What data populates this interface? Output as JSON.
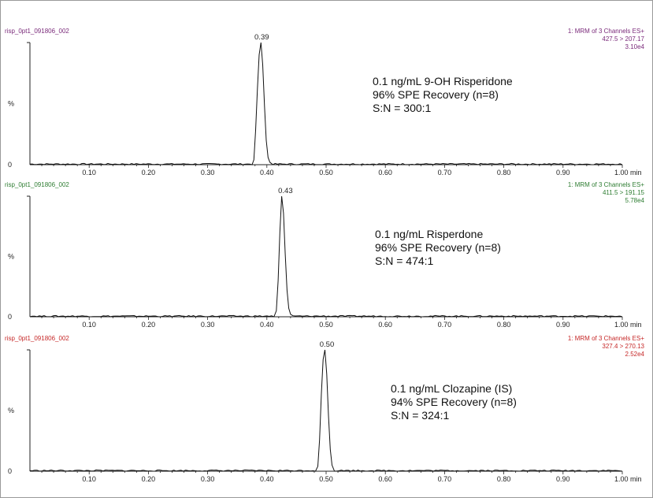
{
  "chart_data": [
    {
      "type": "line",
      "file_label": "risp_0pt1_091806_002",
      "channel_lines": [
        "1: MRM of 3 Channels ES+",
        "427.5 > 207.17",
        "3.10e4"
      ],
      "header_color": "#7a2a7a",
      "ylabel": "%",
      "y_tick_labels": [
        "0"
      ],
      "x_tick_labels": [
        "0.10",
        "0.20",
        "0.30",
        "0.40",
        "0.50",
        "0.60",
        "0.70",
        "0.80",
        "0.90",
        "1.00 min"
      ],
      "xlim": [
        0.0,
        1.0
      ],
      "ylim": [
        0,
        100
      ],
      "peak": {
        "rt": 0.39,
        "label": "0.39",
        "height": 100
      },
      "annotation": [
        "0.1  ng/mL  9-OH  Risperidone",
        "96% SPE Recovery (n=8)",
        "S:N = 300:1"
      ],
      "series": [
        {
          "x": [
            0.0,
            0.375,
            0.378,
            0.381,
            0.384,
            0.387,
            0.39,
            0.393,
            0.396,
            0.399,
            0.402,
            0.405,
            0.41,
            1.0
          ],
          "y": [
            0,
            0,
            4,
            28,
            62,
            90,
            100,
            82,
            48,
            20,
            6,
            2,
            0,
            0
          ]
        }
      ]
    },
    {
      "type": "line",
      "file_label": "risp_0pt1_091806_002",
      "channel_lines": [
        "1: MRM of 3 Channels ES+",
        "411.5 > 191.15",
        "5.78e4"
      ],
      "header_color": "#2e7d32",
      "ylabel": "%",
      "y_tick_labels": [
        "0"
      ],
      "x_tick_labels": [
        "0.10",
        "0.20",
        "0.30",
        "0.40",
        "0.50",
        "0.60",
        "0.70",
        "0.80",
        "0.90",
        "1.00 min"
      ],
      "xlim": [
        0.0,
        1.0
      ],
      "ylim": [
        0,
        100
      ],
      "peak": {
        "rt": 0.43,
        "label": "0.43",
        "height": 100
      },
      "annotation": [
        "0.1  ng/mL  Risperdone",
        "96% SPE Recovery (n=8)",
        "S:N = 474:1"
      ],
      "series": [
        {
          "x": [
            0.0,
            0.412,
            0.416,
            0.419,
            0.422,
            0.425,
            0.428,
            0.431,
            0.434,
            0.437,
            0.44,
            0.444,
            1.0
          ],
          "y": [
            0,
            0,
            5,
            30,
            70,
            100,
            86,
            52,
            22,
            7,
            2,
            0,
            0
          ]
        }
      ]
    },
    {
      "type": "line",
      "file_label": "risp_0pt1_091806_002",
      "channel_lines": [
        "1: MRM of 3 Channels ES+",
        "327.4 > 270.13",
        "2.52e4"
      ],
      "header_color": "#c62828",
      "ylabel": "%",
      "y_tick_labels": [
        "0"
      ],
      "x_tick_labels": [
        "0.10",
        "0.20",
        "0.30",
        "0.40",
        "0.50",
        "0.60",
        "0.70",
        "0.80",
        "0.90",
        "1.00 min"
      ],
      "xlim": [
        0.0,
        1.0
      ],
      "ylim": [
        0,
        100
      ],
      "peak": {
        "rt": 0.5,
        "label": "0.50",
        "height": 100
      },
      "annotation": [
        "0.1  ng/mL  Clozapine (IS)",
        "94% SPE Recovery (n=8)",
        "S:N = 324:1"
      ],
      "series": [
        {
          "x": [
            0.0,
            0.482,
            0.486,
            0.489,
            0.492,
            0.495,
            0.498,
            0.501,
            0.504,
            0.507,
            0.51,
            0.514,
            1.0
          ],
          "y": [
            0,
            0,
            4,
            26,
            64,
            92,
            100,
            80,
            46,
            18,
            5,
            0,
            0
          ]
        }
      ]
    }
  ]
}
